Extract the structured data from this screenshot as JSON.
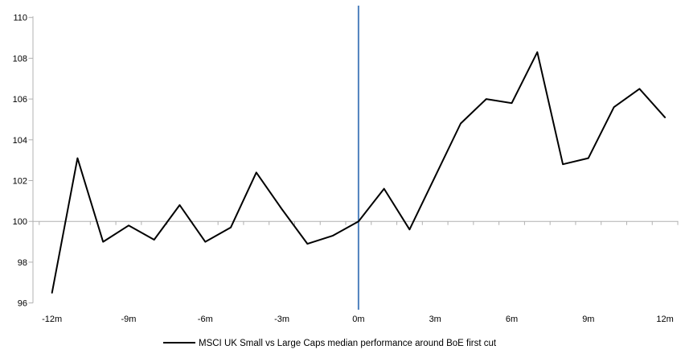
{
  "chart_data": {
    "type": "line",
    "title": "",
    "xlabel": "",
    "ylabel": "",
    "x": [
      -12,
      -11,
      -10,
      -9,
      -8,
      -7,
      -6,
      -5,
      -4,
      -3,
      -2,
      -1,
      0,
      1,
      2,
      3,
      4,
      5,
      6,
      7,
      8,
      9,
      10,
      11,
      12
    ],
    "series": [
      {
        "name": "MSCI UK Small vs Large Caps median performance around BoE first cut",
        "values": [
          96.5,
          103.1,
          99.0,
          99.8,
          99.1,
          100.8,
          99.0,
          99.7,
          102.4,
          100.6,
          98.9,
          99.3,
          100.0,
          101.6,
          99.6,
          102.2,
          104.8,
          106.0,
          105.8,
          108.3,
          102.8,
          103.1,
          105.6,
          106.5,
          105.1
        ]
      }
    ],
    "ylim": [
      96,
      110
    ],
    "y_ticks": [
      96,
      98,
      100,
      102,
      104,
      106,
      108,
      110
    ],
    "x_ticks": [
      {
        "x": -12,
        "label": "-12m"
      },
      {
        "x": -9,
        "label": "-9m"
      },
      {
        "x": -6,
        "label": "-6m"
      },
      {
        "x": -3,
        "label": "-3m"
      },
      {
        "x": 0,
        "label": "0m"
      },
      {
        "x": 3,
        "label": "3m"
      },
      {
        "x": 6,
        "label": "6m"
      },
      {
        "x": 9,
        "label": "9m"
      },
      {
        "x": 12,
        "label": "12m"
      }
    ],
    "axis_crosses_at": 100,
    "event_line_x": 0,
    "legend_position": "bottom",
    "grid": "single horizontal line at 100 (x-axis)",
    "colors": {
      "series_line": "#000000",
      "event_line": "#4f81bd",
      "axis_line": "#b0b0b0",
      "tick_label": "#000000",
      "background": "#ffffff"
    }
  }
}
